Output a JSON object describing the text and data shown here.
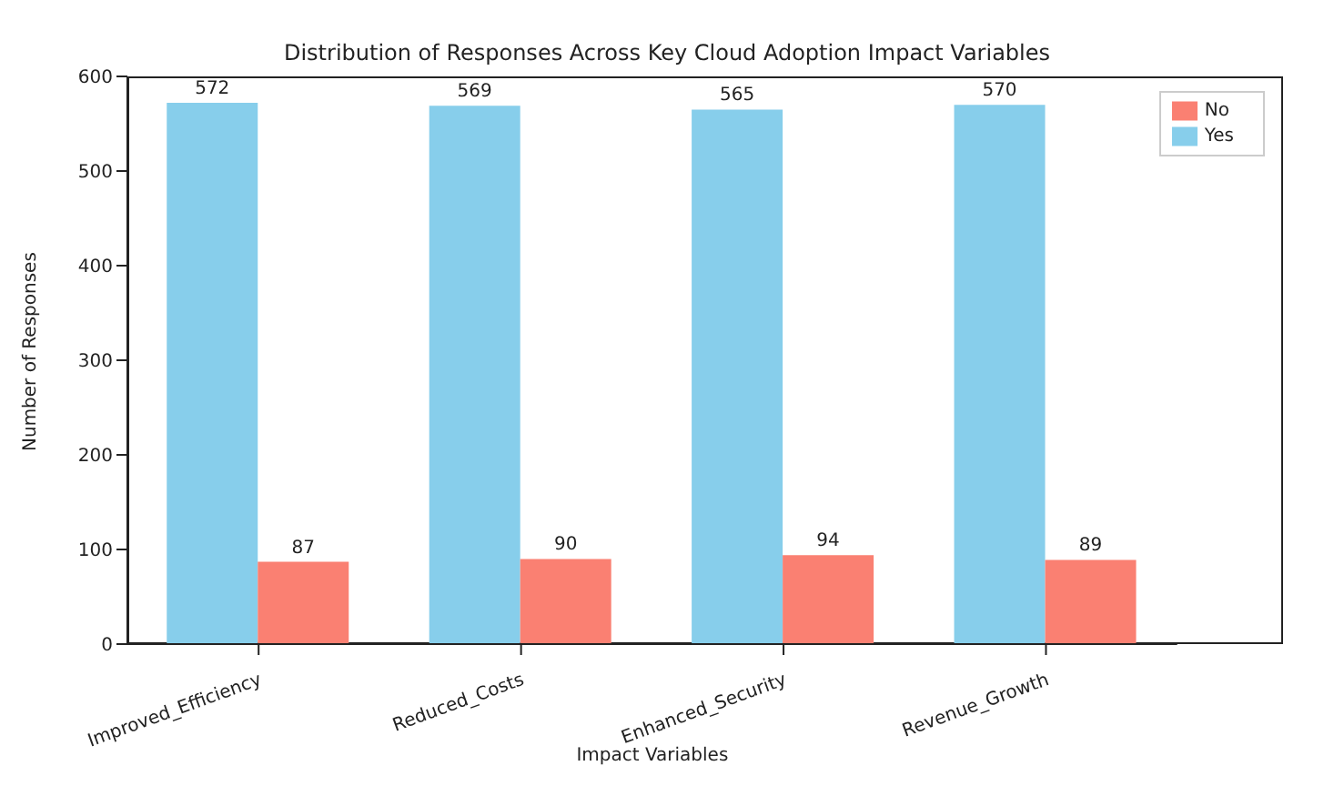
{
  "chart_data": {
    "type": "bar",
    "title": "Distribution of Responses Across Key Cloud Adoption Impact Variables",
    "xlabel": "Impact Variables",
    "ylabel": "Number of Responses",
    "categories": [
      "Improved_Efficiency",
      "Reduced_Costs",
      "Enhanced_Security",
      "Revenue_Growth"
    ],
    "series": [
      {
        "name": "Yes",
        "color": "#87ceeb",
        "values": [
          572,
          569,
          565,
          570
        ]
      },
      {
        "name": "No",
        "color": "#fa8072",
        "values": [
          87,
          90,
          94,
          89
        ]
      }
    ],
    "ylim": [
      0,
      600
    ],
    "yticks": [
      0,
      100,
      200,
      300,
      400,
      500,
      600
    ],
    "grid": false,
    "legend": "top right",
    "data_labels": true
  }
}
